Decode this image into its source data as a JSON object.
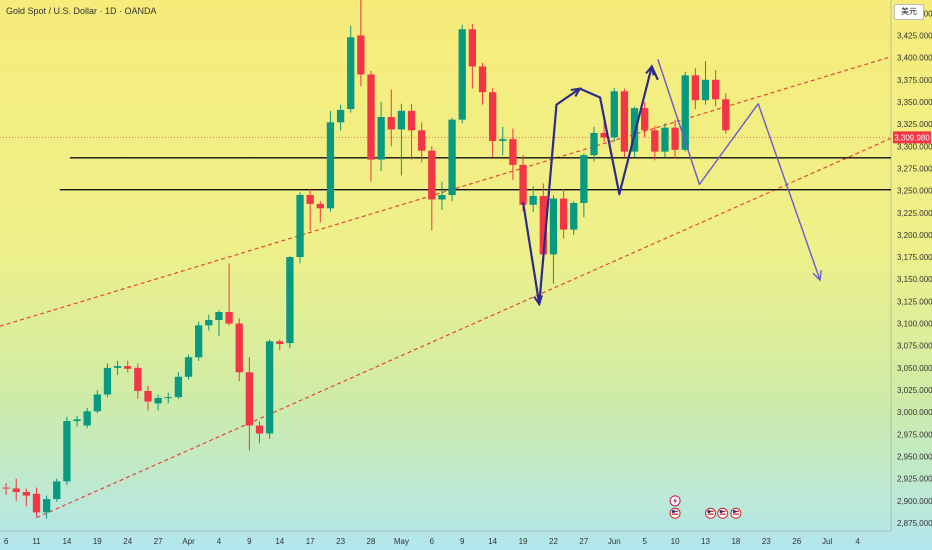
{
  "header": {
    "title": "Gold Spot / U.S. Dollar · 1D · OANDA",
    "currency": "美元"
  },
  "colors": {
    "up": "#089981",
    "down": "#f23645",
    "trend": "#e8453c",
    "level": "#111111",
    "projection": "#6a5acd",
    "swing": "#2e2a8c",
    "price_tag": "#f23645",
    "bg_top": "#f7ec7a",
    "bg_bottom": "#b2e6ee"
  },
  "chart_data": {
    "type": "candlestick",
    "title": "Gold Spot / U.S. Dollar · 1D · OANDA",
    "y_ticks": [
      "3,450.000",
      "3,425.000",
      "3,400.000",
      "3,375.000",
      "3,350.000",
      "3,325.000",
      "3,300.000",
      "3,275.000",
      "3,250.000",
      "3,225.000",
      "3,200.000",
      "3,175.000",
      "3,150.000",
      "3,125.000",
      "3,100.000",
      "3,075.000",
      "3,050.000",
      "3,025.000",
      "3,000.000",
      "2,975.000",
      "2,950.000",
      "2,925.000",
      "2,900.000",
      "2,875.000"
    ],
    "y_tick_values": [
      3450,
      3425,
      3400,
      3375,
      3350,
      3325,
      3300,
      3275,
      3250,
      3225,
      3200,
      3175,
      3150,
      3125,
      3100,
      3075,
      3050,
      3025,
      3000,
      2975,
      2950,
      2925,
      2900,
      2875
    ],
    "ylim": [
      2866,
      3465
    ],
    "x_labels": [
      {
        "label": "6",
        "i": 0
      },
      {
        "label": "11",
        "i": 3
      },
      {
        "label": "14",
        "i": 6
      },
      {
        "label": "19",
        "i": 9
      },
      {
        "label": "24",
        "i": 12
      },
      {
        "label": "27",
        "i": 15
      },
      {
        "label": "Apr",
        "i": 18
      },
      {
        "label": "4",
        "i": 21
      },
      {
        "label": "9",
        "i": 24
      },
      {
        "label": "14",
        "i": 27
      },
      {
        "label": "17",
        "i": 30
      },
      {
        "label": "23",
        "i": 33
      },
      {
        "label": "28",
        "i": 36
      },
      {
        "label": "May",
        "i": 39
      },
      {
        "label": "6",
        "i": 42
      },
      {
        "label": "9",
        "i": 45
      },
      {
        "label": "14",
        "i": 48
      },
      {
        "label": "19",
        "i": 51
      },
      {
        "label": "22",
        "i": 54
      },
      {
        "label": "27",
        "i": 57
      },
      {
        "label": "Jun",
        "i": 60
      },
      {
        "label": "5",
        "i": 63
      },
      {
        "label": "10",
        "i": 66
      },
      {
        "label": "13",
        "i": 69
      },
      {
        "label": "18",
        "i": 72
      },
      {
        "label": "23",
        "i": 75
      },
      {
        "label": "26",
        "i": 78
      },
      {
        "label": "Jul",
        "i": 81
      },
      {
        "label": "4",
        "i": 84
      }
    ],
    "x_domain": [
      -0.6,
      87.3
    ],
    "current_price": {
      "label": "3,309.980",
      "value": 3309.98
    },
    "candles": [
      {
        "o": 2915,
        "h": 2920,
        "l": 2907,
        "c": 2914
      },
      {
        "o": 2914,
        "h": 2925,
        "l": 2900,
        "c": 2910
      },
      {
        "o": 2910,
        "h": 2914,
        "l": 2894,
        "c": 2906
      },
      {
        "o": 2908,
        "h": 2915,
        "l": 2882,
        "c": 2887
      },
      {
        "o": 2887,
        "h": 2906,
        "l": 2880,
        "c": 2902
      },
      {
        "o": 2902,
        "h": 2925,
        "l": 2899,
        "c": 2922
      },
      {
        "o": 2922,
        "h": 2995,
        "l": 2918,
        "c": 2990
      },
      {
        "o": 2990,
        "h": 2996,
        "l": 2984,
        "c": 2992
      },
      {
        "o": 2985,
        "h": 3005,
        "l": 2982,
        "c": 3001
      },
      {
        "o": 3001,
        "h": 3025,
        "l": 2999,
        "c": 3020
      },
      {
        "o": 3020,
        "h": 3055,
        "l": 3017,
        "c": 3050
      },
      {
        "o": 3050,
        "h": 3058,
        "l": 3042,
        "c": 3052
      },
      {
        "o": 3052,
        "h": 3058,
        "l": 3045,
        "c": 3049
      },
      {
        "o": 3050,
        "h": 3055,
        "l": 3015,
        "c": 3024
      },
      {
        "o": 3024,
        "h": 3030,
        "l": 3002,
        "c": 3012
      },
      {
        "o": 3010,
        "h": 3020,
        "l": 3002,
        "c": 3016
      },
      {
        "o": 3016,
        "h": 3022,
        "l": 3010,
        "c": 3017
      },
      {
        "o": 3017,
        "h": 3045,
        "l": 3015,
        "c": 3040
      },
      {
        "o": 3040,
        "h": 3065,
        "l": 3037,
        "c": 3062
      },
      {
        "o": 3062,
        "h": 3102,
        "l": 3058,
        "c": 3098
      },
      {
        "o": 3098,
        "h": 3110,
        "l": 3092,
        "c": 3104
      },
      {
        "o": 3104,
        "h": 3115,
        "l": 3086,
        "c": 3113
      },
      {
        "o": 3113,
        "h": 3168,
        "l": 3098,
        "c": 3100
      },
      {
        "o": 3100,
        "h": 3106,
        "l": 3035,
        "c": 3045
      },
      {
        "o": 3045,
        "h": 3062,
        "l": 2957,
        "c": 2985
      },
      {
        "o": 2985,
        "h": 2990,
        "l": 2965,
        "c": 2976
      },
      {
        "o": 2976,
        "h": 3082,
        "l": 2970,
        "c": 3080
      },
      {
        "o": 3080,
        "h": 3082,
        "l": 3070,
        "c": 3077
      },
      {
        "o": 3078,
        "h": 3176,
        "l": 3072,
        "c": 3175
      },
      {
        "o": 3175,
        "h": 3248,
        "l": 3168,
        "c": 3245
      },
      {
        "o": 3245,
        "h": 3252,
        "l": 3205,
        "c": 3235
      },
      {
        "o": 3235,
        "h": 3238,
        "l": 3214,
        "c": 3230
      },
      {
        "o": 3230,
        "h": 3340,
        "l": 3226,
        "c": 3327
      },
      {
        "o": 3327,
        "h": 3347,
        "l": 3318,
        "c": 3341
      },
      {
        "o": 3342,
        "h": 3436,
        "l": 3338,
        "c": 3423
      },
      {
        "o": 3425,
        "h": 3500,
        "l": 3368,
        "c": 3381
      },
      {
        "o": 3381,
        "h": 3385,
        "l": 3260,
        "c": 3285
      },
      {
        "o": 3285,
        "h": 3350,
        "l": 3272,
        "c": 3333
      },
      {
        "o": 3333,
        "h": 3364,
        "l": 3300,
        "c": 3319
      },
      {
        "o": 3319,
        "h": 3348,
        "l": 3267,
        "c": 3340
      },
      {
        "o": 3340,
        "h": 3348,
        "l": 3285,
        "c": 3318
      },
      {
        "o": 3318,
        "h": 3327,
        "l": 3282,
        "c": 3295
      },
      {
        "o": 3295,
        "h": 3300,
        "l": 3205,
        "c": 3240
      },
      {
        "o": 3240,
        "h": 3260,
        "l": 3228,
        "c": 3245
      },
      {
        "o": 3245,
        "h": 3332,
        "l": 3238,
        "c": 3330
      },
      {
        "o": 3330,
        "h": 3437,
        "l": 3326,
        "c": 3432
      },
      {
        "o": 3432,
        "h": 3438,
        "l": 3365,
        "c": 3390
      },
      {
        "o": 3390,
        "h": 3394,
        "l": 3347,
        "c": 3361
      },
      {
        "o": 3361,
        "h": 3365,
        "l": 3288,
        "c": 3306
      },
      {
        "o": 3306,
        "h": 3322,
        "l": 3290,
        "c": 3308
      },
      {
        "o": 3308,
        "h": 3320,
        "l": 3262,
        "c": 3279
      },
      {
        "o": 3279,
        "h": 3290,
        "l": 3227,
        "c": 3234
      },
      {
        "o": 3234,
        "h": 3255,
        "l": 3226,
        "c": 3244
      },
      {
        "o": 3244,
        "h": 3258,
        "l": 3172,
        "c": 3178
      },
      {
        "o": 3178,
        "h": 3245,
        "l": 3145,
        "c": 3241
      },
      {
        "o": 3241,
        "h": 3252,
        "l": 3196,
        "c": 3206
      },
      {
        "o": 3206,
        "h": 3238,
        "l": 3200,
        "c": 3236
      },
      {
        "o": 3236,
        "h": 3292,
        "l": 3220,
        "c": 3290
      },
      {
        "o": 3290,
        "h": 3322,
        "l": 3283,
        "c": 3315
      },
      {
        "o": 3315,
        "h": 3331,
        "l": 3305,
        "c": 3310
      },
      {
        "o": 3310,
        "h": 3366,
        "l": 3305,
        "c": 3362
      },
      {
        "o": 3362,
        "h": 3365,
        "l": 3288,
        "c": 3294
      },
      {
        "o": 3294,
        "h": 3345,
        "l": 3288,
        "c": 3343
      },
      {
        "o": 3343,
        "h": 3350,
        "l": 3310,
        "c": 3318
      },
      {
        "o": 3318,
        "h": 3323,
        "l": 3284,
        "c": 3294
      },
      {
        "o": 3294,
        "h": 3326,
        "l": 3288,
        "c": 3321
      },
      {
        "o": 3321,
        "h": 3330,
        "l": 3286,
        "c": 3296
      },
      {
        "o": 3296,
        "h": 3384,
        "l": 3294,
        "c": 3380
      },
      {
        "o": 3380,
        "h": 3388,
        "l": 3342,
        "c": 3352
      },
      {
        "o": 3352,
        "h": 3396,
        "l": 3347,
        "c": 3375
      },
      {
        "o": 3375,
        "h": 3386,
        "l": 3345,
        "c": 3353
      },
      {
        "o": 3353,
        "h": 3360,
        "l": 3314,
        "c": 3318
      }
    ],
    "trendlines": [
      {
        "name": "upper-trendline",
        "points": [
          [
            -0.6,
            3097
          ],
          [
            87.3,
            3401
          ]
        ]
      },
      {
        "name": "lower-trendline",
        "points": [
          [
            3,
            2881
          ],
          [
            87.3,
            3309
          ]
        ]
      }
    ],
    "levels": [
      {
        "name": "resistance-line",
        "y": 3287,
        "x0": 6.3,
        "x1": 87.3
      },
      {
        "name": "support-line",
        "y": 3251,
        "x0": 5.3,
        "x1": 87.3
      }
    ],
    "swing_path": [
      [
        51,
        3237
      ],
      [
        52.6,
        3122
      ],
      [
        54.3,
        3347
      ],
      [
        56.6,
        3365
      ],
      [
        58.6,
        3355
      ],
      [
        60.5,
        3246
      ],
      [
        63.7,
        3390
      ],
      [
        64.3,
        3375
      ]
    ],
    "projection_path": [
      [
        64.3,
        3398
      ],
      [
        68.4,
        3257
      ],
      [
        74.2,
        3348
      ],
      [
        80.3,
        3149
      ]
    ],
    "events": [
      {
        "type": "lightning",
        "i": 66,
        "y": 2900
      },
      {
        "type": "flag",
        "i": 66,
        "y": 2886
      },
      {
        "type": "flag",
        "i": 69.5,
        "y": 2886
      },
      {
        "type": "flag",
        "i": 70.7,
        "y": 2886
      },
      {
        "type": "flag",
        "i": 72,
        "y": 2886
      }
    ]
  }
}
